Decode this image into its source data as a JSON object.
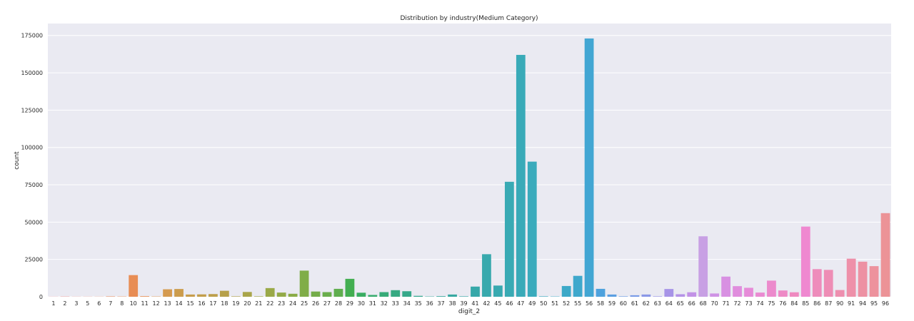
{
  "chart_data": {
    "type": "bar",
    "title": "Distribution by industry(Medium Category)",
    "xlabel": "digit_2",
    "ylabel": "count",
    "ylim": [
      0,
      183000
    ],
    "yticks": [
      0,
      25000,
      50000,
      75000,
      100000,
      125000,
      150000,
      175000
    ],
    "grid": true,
    "categories": [
      "1",
      "2",
      "3",
      "5",
      "6",
      "7",
      "8",
      "10",
      "11",
      "12",
      "13",
      "14",
      "15",
      "16",
      "17",
      "18",
      "19",
      "20",
      "21",
      "22",
      "23",
      "24",
      "25",
      "26",
      "27",
      "28",
      "29",
      "30",
      "31",
      "32",
      "33",
      "34",
      "35",
      "36",
      "37",
      "38",
      "39",
      "41",
      "42",
      "45",
      "46",
      "47",
      "49",
      "50",
      "51",
      "52",
      "55",
      "56",
      "58",
      "59",
      "60",
      "61",
      "62",
      "63",
      "64",
      "65",
      "66",
      "68",
      "70",
      "71",
      "72",
      "73",
      "74",
      "75",
      "76",
      "84",
      "85",
      "86",
      "87",
      "90",
      "91",
      "94",
      "95",
      "96"
    ],
    "values": [
      100,
      200,
      100,
      100,
      100,
      300,
      200,
      14500,
      400,
      200,
      5000,
      5200,
      1500,
      1600,
      1800,
      4000,
      300,
      3200,
      300,
      5800,
      2800,
      2000,
      17500,
      3500,
      3100,
      5300,
      12000,
      2700,
      1200,
      3100,
      4400,
      3700,
      600,
      200,
      400,
      1500,
      300,
      6800,
      28500,
      7500,
      77000,
      162000,
      90500,
      300,
      200,
      7200,
      14000,
      173000,
      5300,
      1500,
      300,
      1000,
      1500,
      300,
      5200,
      1700,
      3000,
      40500,
      2200,
      13500,
      7100,
      6000,
      2800,
      10800,
      4200,
      3000,
      47000,
      18500,
      18000,
      4500,
      25500,
      23500,
      20500,
      56000
    ],
    "colors": [
      "#f1a1a4",
      "#f0a09a",
      "#ef9f90",
      "#ee9e86",
      "#ed9d7c",
      "#ec9c72",
      "#eb9b68",
      "#e88d55",
      "#e79154",
      "#df9552",
      "#d59b50",
      "#cc9c4c",
      "#c79d4c",
      "#c29e4c",
      "#bd9f4b",
      "#b6a04a",
      "#b0a24a",
      "#a9a54a",
      "#a2a748",
      "#9aa948",
      "#93aa48",
      "#8aac47",
      "#80ad48",
      "#75ad4a",
      "#6aae4c",
      "#5fae4e",
      "#43ae51",
      "#3aad62",
      "#39ac6e",
      "#38ab78",
      "#37aa82",
      "#37a98a",
      "#37a891",
      "#37a897",
      "#37a89c",
      "#37a8a1",
      "#37a8a5",
      "#37a8a9",
      "#38a9ad",
      "#38a9b0",
      "#39aab4",
      "#39aab8",
      "#3aabbc",
      "#3baac0",
      "#3caac4",
      "#3da9c8",
      "#3fa8cc",
      "#42a6d3",
      "#4ea2dd",
      "#5b9fe2",
      "#6a9ce4",
      "#789ae6",
      "#8a97e7",
      "#9995e7",
      "#a794e7",
      "#b593e7",
      "#c292e6",
      "#c8a0e4",
      "#cf93e5",
      "#d890e2",
      "#e08ddd",
      "#e68bd8",
      "#ea8ad2",
      "#ec8acc",
      "#ee8ac6",
      "#ef8ac0",
      "#ef88d0",
      "#ee8cbb",
      "#ee8db5",
      "#ee8faf",
      "#ee90a9",
      "#ed91a3",
      "#ed929d",
      "#ec9397"
    ]
  }
}
